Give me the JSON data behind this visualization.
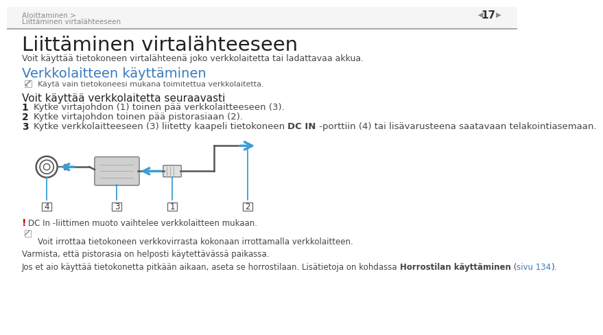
{
  "bg_color": "#f5f5f5",
  "page_bg": "#ffffff",
  "breadcrumb1": "Aloittaminen >",
  "breadcrumb2": "Liittäminen virtalähteeseen",
  "page_number": "17",
  "title": "Liittäminen virtalähteeseen",
  "subtitle": "Voit käyttää tietokoneen virtalähteenä joko verkkolaitetta tai ladattavaa akkua.",
  "section_title": "Verkkolaitteen käyttäminen",
  "section_title_color": "#3a7abf",
  "note1_text": "Käytä vain tietokoneesi mukana toimitettua verkkolaitetta.",
  "list_intro": "Voit käyttää verkkolaitetta seuraavasti",
  "item1": "Kytke virtajohdon (1) toinen pää verkkolaitteeseen (3).",
  "item2": "Kytke virtajohdon toinen pää pistorasiaan (2).",
  "item3_pre": "Kytke verkkolaitteeseen (3) liitetty kaapeli tietokoneen ",
  "item3_bold": "DC IN",
  "item3_post": " -porttiin (4) tai lisävarusteena saatavaan telakointiasemaan.",
  "warning_text": "DC In -liittimen muoto vaihtelee verkkolaitteen mukaan.",
  "note2_text": "Voit irrottaa tietokoneen verkkovirrasta kokonaan irrottamalla verkkolaitteen.",
  "note3_text": "Varmista, että pistorasia on helposti käytettävässä paikassa.",
  "note4_pre": "Jos et aio käyttää tietokonetta pitkään aikaan, aseta se horrostilaan. Lisätietoja on kohdassa ",
  "note4_bold": "Horrostilan käyttäminen",
  "note4_mid": " (",
  "note4_link": "sivu 134",
  "note4_post": ").",
  "link_color": "#3a7abf",
  "arrow_color": "#3a9dd4",
  "line_color": "#3a9dd4",
  "gray_dark": "#555555",
  "gray_mid": "#888888",
  "gray_light": "#cccccc",
  "text_dark": "#222222",
  "text_mid": "#444444",
  "text_small": "#555555",
  "header_line_color": "#999999",
  "red_warn": "#cc0000"
}
